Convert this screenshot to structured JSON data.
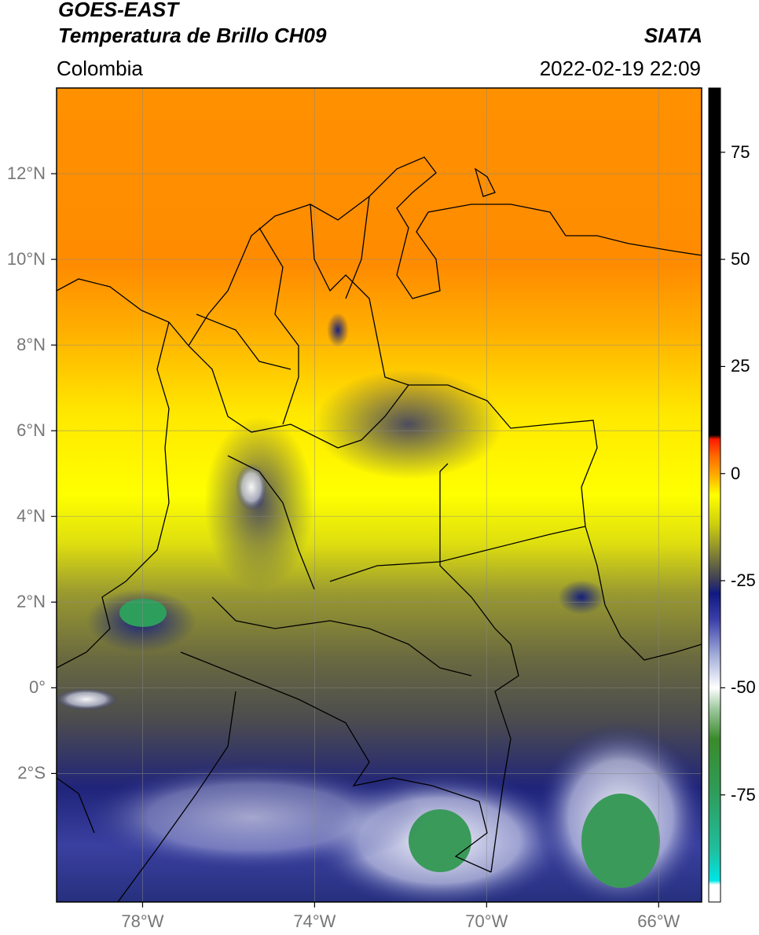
{
  "header": {
    "satellite": "GOES-EAST",
    "product": "Temperatura de Brillo CH09",
    "region": "Colombia",
    "agency": "SIATA",
    "datetime": "2022-02-19 22:09"
  },
  "map": {
    "lon_range": [
      -80,
      -65
    ],
    "lat_range": [
      -5,
      14
    ],
    "lat_ticks": [
      {
        "value": 12,
        "label": "12°N"
      },
      {
        "value": 10,
        "label": "10°N"
      },
      {
        "value": 8,
        "label": "8°N"
      },
      {
        "value": 6,
        "label": "6°N"
      },
      {
        "value": 4,
        "label": "4°N"
      },
      {
        "value": 2,
        "label": "2°N"
      },
      {
        "value": 0,
        "label": "0°"
      },
      {
        "value": -2,
        "label": "2°S"
      }
    ],
    "lon_ticks": [
      {
        "value": -78,
        "label": "78°W"
      },
      {
        "value": -74,
        "label": "74°W"
      },
      {
        "value": -70,
        "label": "70°W"
      },
      {
        "value": -66,
        "label": "66°W"
      }
    ],
    "grid": true
  },
  "colorbar": {
    "range": [
      -100,
      90
    ],
    "ticks": [
      {
        "value": 75,
        "label": "75"
      },
      {
        "value": 50,
        "label": "50"
      },
      {
        "value": 25,
        "label": "25"
      },
      {
        "value": 0,
        "label": "0"
      },
      {
        "value": -25,
        "label": "-25"
      },
      {
        "value": -50,
        "label": "-50"
      },
      {
        "value": -75,
        "label": "-75"
      }
    ],
    "stops": [
      {
        "value": -100,
        "color": "#ffffff"
      },
      {
        "value": -96,
        "color": "#ffffff"
      },
      {
        "value": -95,
        "color": "#00e5e5"
      },
      {
        "value": -88,
        "color": "#1fbfa0"
      },
      {
        "value": -75,
        "color": "#2e9e5c"
      },
      {
        "value": -62,
        "color": "#3a8a2a"
      },
      {
        "value": -55,
        "color": "#9cc89c"
      },
      {
        "value": -50,
        "color": "#ffffff"
      },
      {
        "value": -42,
        "color": "#9da8d8"
      },
      {
        "value": -34,
        "color": "#3a3ea8"
      },
      {
        "value": -28,
        "color": "#101a80"
      },
      {
        "value": -25,
        "color": "#3a3a5a"
      },
      {
        "value": -18,
        "color": "#8a8a30"
      },
      {
        "value": -12,
        "color": "#cccc10"
      },
      {
        "value": -5,
        "color": "#ffff00"
      },
      {
        "value": 0,
        "color": "#ffa500"
      },
      {
        "value": 4,
        "color": "#ff6a00"
      },
      {
        "value": 8,
        "color": "#ff1a00"
      },
      {
        "value": 9,
        "color": "#000000"
      },
      {
        "value": 90,
        "color": "#000000"
      }
    ]
  }
}
